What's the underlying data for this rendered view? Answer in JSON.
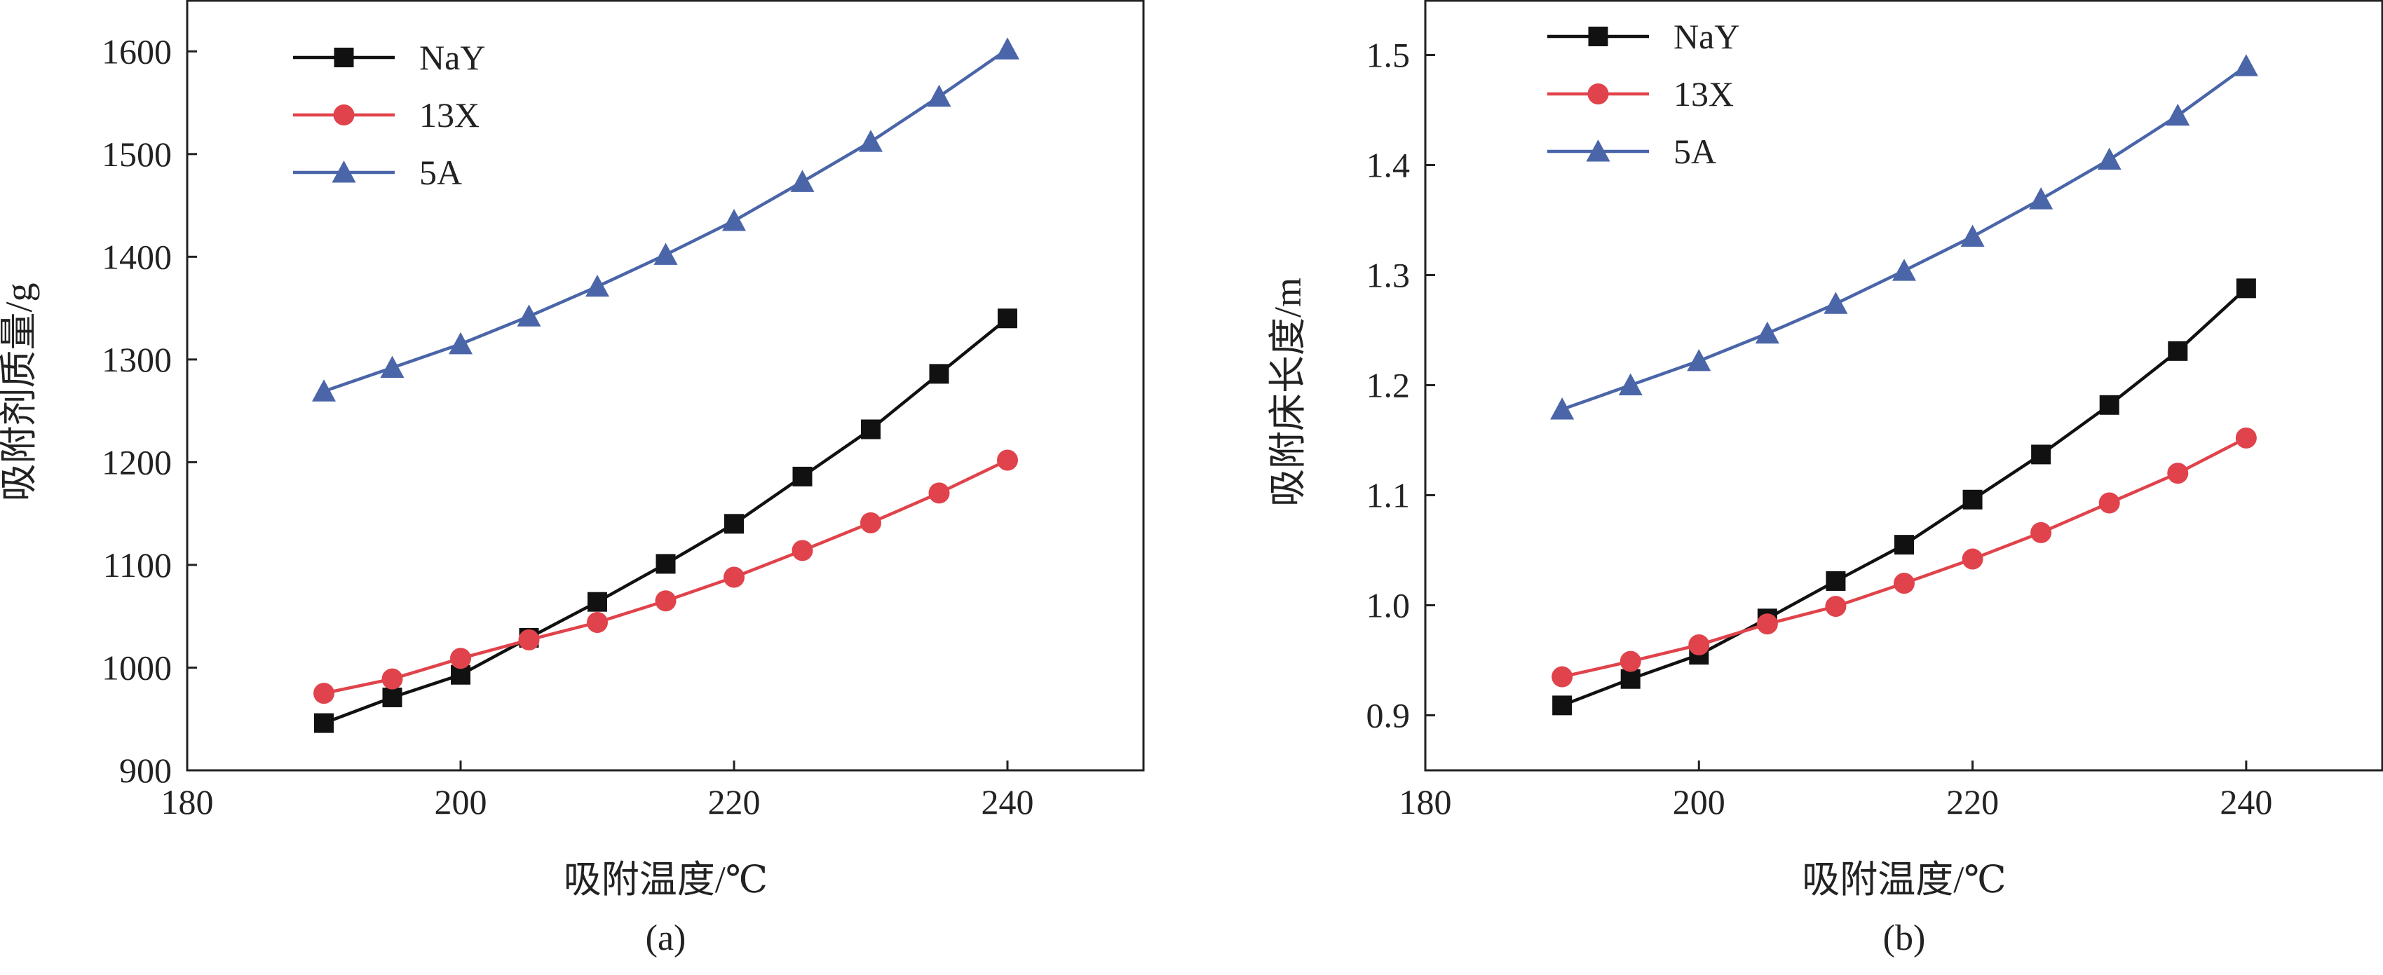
{
  "chart_data": [
    {
      "type": "line",
      "panel_label": "(a)",
      "title": "",
      "xlabel": "吸附温度/℃",
      "ylabel": "吸附剂质量/g",
      "xlim": [
        180,
        250
      ],
      "ylim": [
        900,
        1650
      ],
      "xticks": [
        180,
        200,
        220,
        240
      ],
      "yticks": [
        900,
        1000,
        1100,
        1200,
        1300,
        1400,
        1500,
        1600
      ],
      "xtick_labels": [
        "180",
        "200",
        "220",
        "240"
      ],
      "ytick_labels": [
        "900",
        "1000",
        "1100",
        "1200",
        "1300",
        "1400",
        "1500",
        "1600"
      ],
      "legend_position": "top-left",
      "x": [
        190,
        195,
        200,
        205,
        210,
        215,
        220,
        225,
        230,
        235,
        240
      ],
      "series": [
        {
          "name": "NaY",
          "marker": "square",
          "color": "#111111",
          "values": [
            946,
            971,
            993,
            1029,
            1064,
            1101,
            1140,
            1186,
            1232,
            1286,
            1340
          ]
        },
        {
          "name": "13X",
          "marker": "circle",
          "color": "#e0434b",
          "values": [
            975,
            989,
            1009,
            1027,
            1044,
            1065,
            1088,
            1114,
            1141,
            1170,
            1202
          ]
        },
        {
          "name": "5A",
          "marker": "triangle",
          "color": "#4a65a8",
          "values": [
            1269,
            1292,
            1315,
            1342,
            1371,
            1402,
            1435,
            1473,
            1512,
            1556,
            1602
          ]
        }
      ]
    },
    {
      "type": "line",
      "panel_label": "(b)",
      "title": "",
      "xlabel": "吸附温度/℃",
      "ylabel": "吸附床长度/m",
      "xlim": [
        180,
        250
      ],
      "ylim": [
        0.85,
        1.55
      ],
      "xticks": [
        180,
        200,
        220,
        240
      ],
      "yticks": [
        0.9,
        1.0,
        1.1,
        1.2,
        1.3,
        1.4,
        1.5
      ],
      "xtick_labels": [
        "180",
        "200",
        "220",
        "240"
      ],
      "ytick_labels": [
        "0.9",
        "1.0",
        "1.1",
        "1.2",
        "1.3",
        "1.4",
        "1.5"
      ],
      "legend_position": "top-left",
      "x": [
        190,
        195,
        200,
        205,
        210,
        215,
        220,
        225,
        230,
        235,
        240
      ],
      "series": [
        {
          "name": "NaY",
          "marker": "square",
          "color": "#111111",
          "values": [
            0.909,
            0.933,
            0.955,
            0.988,
            1.022,
            1.055,
            1.096,
            1.137,
            1.182,
            1.231,
            1.288
          ]
        },
        {
          "name": "13X",
          "marker": "circle",
          "color": "#e0434b",
          "values": [
            0.935,
            0.949,
            0.964,
            0.983,
            0.999,
            1.02,
            1.042,
            1.066,
            1.093,
            1.12,
            1.152
          ]
        },
        {
          "name": "5A",
          "marker": "triangle",
          "color": "#4a65a8",
          "values": [
            1.178,
            1.2,
            1.222,
            1.247,
            1.274,
            1.304,
            1.335,
            1.369,
            1.405,
            1.445,
            1.49
          ]
        }
      ]
    }
  ]
}
